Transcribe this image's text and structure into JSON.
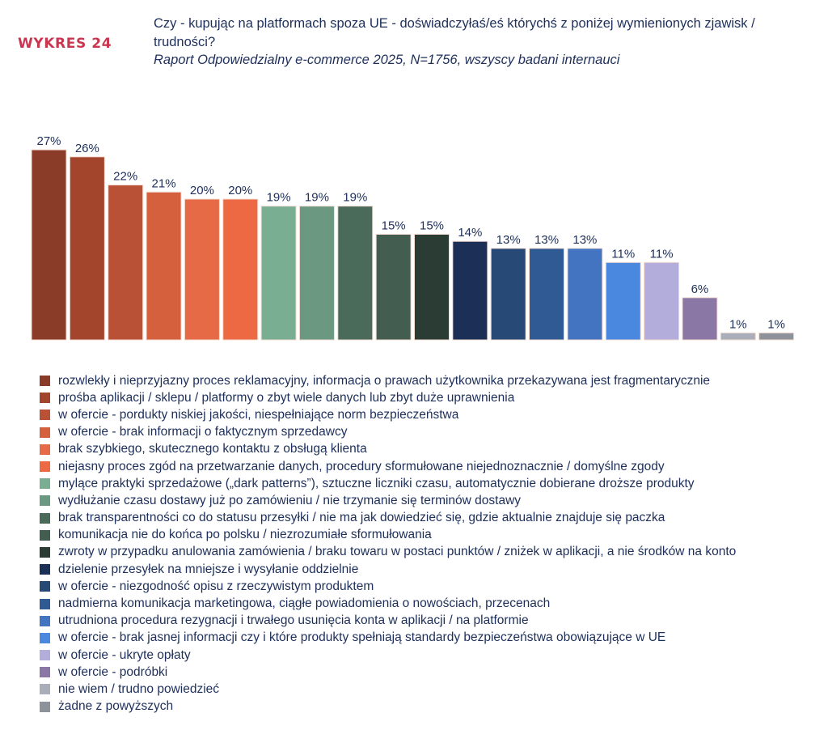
{
  "header": {
    "chart_label": "WYKRES 24",
    "title": "Czy - kupując na platformach spoza UE - doświadczyłaś/eś którychś z poniżej wymienionych zjawisk / trudności?",
    "subtitle": "Raport Odpowiedzialny e-commerce 2025, N=1756, wszyscy badani internauci"
  },
  "chart_data": {
    "type": "bar",
    "title": "Czy - kupując na platformach spoza UE - doświadczyłaś/eś którychś z poniżej wymienionych zjawisk / trudności?",
    "xlabel": "",
    "ylabel": "",
    "ylim": [
      0,
      27
    ],
    "grid": false,
    "legend_position": "bottom",
    "unit": "%",
    "categories": [
      "rozwlekły i nieprzyjazny proces reklamacyjny, informacja o prawach użytkownika przekazywana jest fragmentarycznie",
      "prośba aplikacji / sklepu / platformy o zbyt wiele danych lub zbyt duże uprawnienia",
      "w ofercie - porduktу niskiej jakości, niespełniające norm bezpieczeństwa",
      "w ofercie - brak informacji o faktycznym sprzedawcy",
      "brak szybkiego, skutecznego kontaktu z obsługą klienta",
      "niejasny proces zgód na przetwarzanie danych, procedury sformułowane niejednoznacznie / domyślne zgody",
      "mylące praktyki sprzedażowe („dark patterns”), sztuczne liczniki czasu, automatycznie dobierane droższe produkty",
      "wydłużanie czasu dostawy już po zamówieniu / nie trzymanie się terminów dostawy",
      "brak transparentności co do statusu przesyłki / nie ma jak dowiedzieć się, gdzie aktualnie znajduje się paczka",
      "komunikacja nie do końca po polsku / niezrozumiałe sformułowania",
      "zwroty w przypadku anulowania zamówienia / braku towaru w postaci punktów / zniżek w aplikacji, a nie środków na konto",
      "dzielenie przesyłek na mniejsze i wysyłanie oddzielnie",
      "w ofercie - niezgodność opisu z rzeczywistym produktem",
      "nadmierna komunikacja marketingowa, ciągłe powiadomienia o nowościach, przecenach",
      "utrudniona procedura rezygnacji i trwałego usunięcia konta w aplikacji / na platformie",
      "w ofercie - brak jasnej informacji czy i które produkty spełniają standardy bezpieczeństwa obowiązujące w UE",
      "w ofercie - ukryte opłaty",
      "w ofercie - podróbki",
      "nie wiem / trudno powiedzieć",
      "żadne z powyższych"
    ],
    "values": [
      27,
      26,
      22,
      21,
      20,
      20,
      19,
      19,
      19,
      15,
      15,
      14,
      13,
      13,
      13,
      11,
      11,
      6,
      1,
      1
    ],
    "labels": [
      "27%",
      "26%",
      "22%",
      "21%",
      "20%",
      "20%",
      "19%",
      "19%",
      "19%",
      "15%",
      "15%",
      "14%",
      "13%",
      "13%",
      "13%",
      "11%",
      "11%",
      "6%",
      "1%",
      "1%"
    ],
    "colors": [
      "#8b3c28",
      "#a2452c",
      "#b95136",
      "#d5603e",
      "#e66a45",
      "#ec6944",
      "#7aae93",
      "#6a9880",
      "#4a6a5a",
      "#435e50",
      "#2a3c34",
      "#1c3057",
      "#264a75",
      "#2f5a94",
      "#4374c1",
      "#4a88e0",
      "#b3addb",
      "#8a77a6",
      "#a9aeb8",
      "#8e929b"
    ]
  }
}
